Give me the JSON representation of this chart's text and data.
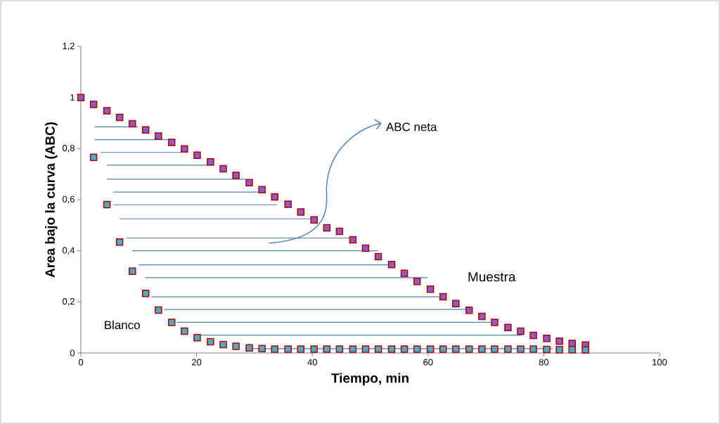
{
  "chart_data": {
    "type": "scatter",
    "xlabel": "Tiempo, min",
    "ylabel": "Area bajo la curva (ABC)",
    "xlim": [
      0,
      100
    ],
    "ylim": [
      0,
      1.2
    ],
    "xticks": [
      0,
      20,
      40,
      60,
      80,
      100
    ],
    "yticks": [
      0,
      {
        "value": 0.2,
        "label": "0,2"
      },
      {
        "value": 0.4,
        "label": "0,4"
      },
      {
        "value": 0.6,
        "label": "0,6"
      },
      {
        "value": 0.8,
        "label": "0,8"
      },
      1,
      {
        "value": 1.2,
        "label": "1,2"
      }
    ],
    "x": [
      0,
      2.2,
      4.5,
      6.7,
      8.9,
      11.2,
      13.4,
      15.7,
      17.9,
      20.1,
      22.4,
      24.6,
      26.8,
      29.1,
      31.3,
      33.5,
      35.8,
      38.0,
      40.3,
      42.5,
      44.7,
      47.0,
      49.2,
      51.4,
      53.7,
      55.9,
      58.1,
      60.4,
      62.6,
      64.8,
      67.1,
      69.3,
      71.5,
      73.8,
      76.0,
      78.2,
      80.5,
      82.7,
      84.9,
      87.2
    ],
    "series": [
      {
        "type": "line",
        "color": "#4f81bd",
        "marker": "none",
        "x": [
          2.4,
          9.9,
          null,
          2.4,
          15.4,
          null,
          3.4,
          17.5,
          null,
          4.5,
          23.0,
          null,
          4.5,
          28.4,
          null,
          5.6,
          31.7,
          null,
          5.6,
          33.9,
          null,
          6.7,
          40.3,
          null,
          7.8,
          47.0,
          null,
          8.9,
          51.3,
          null,
          10.0,
          54.4,
          null,
          11.1,
          59.9,
          null,
          12.2,
          62.1,
          null,
          14.4,
          67.4,
          null,
          16.6,
          70.8,
          null,
          19.8,
          76.3,
          null,
          29.2,
          81.6
        ],
        "values": [
          0.885,
          0.885,
          null,
          0.835,
          0.835,
          null,
          0.785,
          0.785,
          null,
          0.735,
          0.735,
          null,
          0.68,
          0.68,
          null,
          0.63,
          0.63,
          null,
          0.58,
          0.58,
          null,
          0.525,
          0.525,
          null,
          0.45,
          0.45,
          null,
          0.4,
          0.4,
          null,
          0.345,
          0.345,
          null,
          0.295,
          0.295,
          null,
          0.22,
          0.22,
          null,
          0.17,
          0.17,
          null,
          0.12,
          0.12,
          null,
          0.07,
          0.07,
          null,
          0.017,
          0.017
        ]
      },
      {
        "name": "Muestra",
        "color": "#8e5bc4",
        "values": [
          1.0,
          0.973,
          0.948,
          0.922,
          0.897,
          0.873,
          0.849,
          0.824,
          0.799,
          0.774,
          0.748,
          0.721,
          0.695,
          0.667,
          0.639,
          0.611,
          0.582,
          0.552,
          0.521,
          0.49,
          0.476,
          0.443,
          0.41,
          0.377,
          0.346,
          0.312,
          0.28,
          0.25,
          0.22,
          0.193,
          0.167,
          0.143,
          0.12,
          0.1,
          0.085,
          0.069,
          0.057,
          0.046,
          0.037,
          0.031
        ]
      },
      {
        "name": "Blanco",
        "color": "#4bacc6",
        "values": [
          null,
          0.766,
          0.581,
          0.434,
          0.32,
          0.233,
          0.168,
          0.12,
          0.085,
          0.06,
          0.044,
          0.033,
          0.026,
          0.02,
          0.017,
          0.015,
          0.015,
          0.015,
          0.015,
          0.015,
          0.015,
          0.015,
          0.015,
          0.015,
          0.015,
          0.015,
          0.015,
          0.015,
          0.015,
          0.015,
          0.015,
          0.015,
          0.015,
          0.015,
          0.015,
          0.015,
          0.014,
          0.013,
          0.013,
          0.012
        ]
      }
    ],
    "marker": "square",
    "annotations": [
      "ABC neta"
    ]
  }
}
